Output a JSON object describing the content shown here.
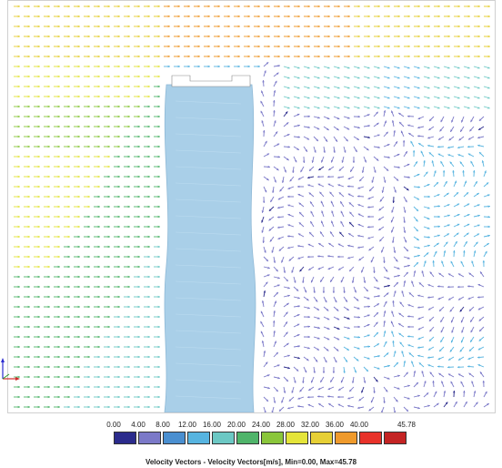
{
  "plot": {
    "description_hidden": "",
    "obstacle_color": "#a9cfe8",
    "background": "#ffffff"
  },
  "colorbar": {
    "ticks": [
      "0.00",
      "4.00",
      "8.00",
      "12.00",
      "16.00",
      "20.00",
      "24.00",
      "28.00",
      "32.00",
      "36.00",
      "40.00",
      "45.78"
    ],
    "colors": [
      "#2b2b8c",
      "#7b79c8",
      "#4a8fd0",
      "#57b4e0",
      "#6cc8c4",
      "#4fb46a",
      "#8ac63b",
      "#e4e43a",
      "#e6cf35",
      "#ef9a2c",
      "#e8322a",
      "#c42424"
    ]
  },
  "legend": {
    "caption": "Velocity Vectors  - Velocity Vectors[m/s], Min=0.00, Max=45.78"
  },
  "axes_triad": {
    "x_label": "x",
    "y_label": "y"
  }
}
